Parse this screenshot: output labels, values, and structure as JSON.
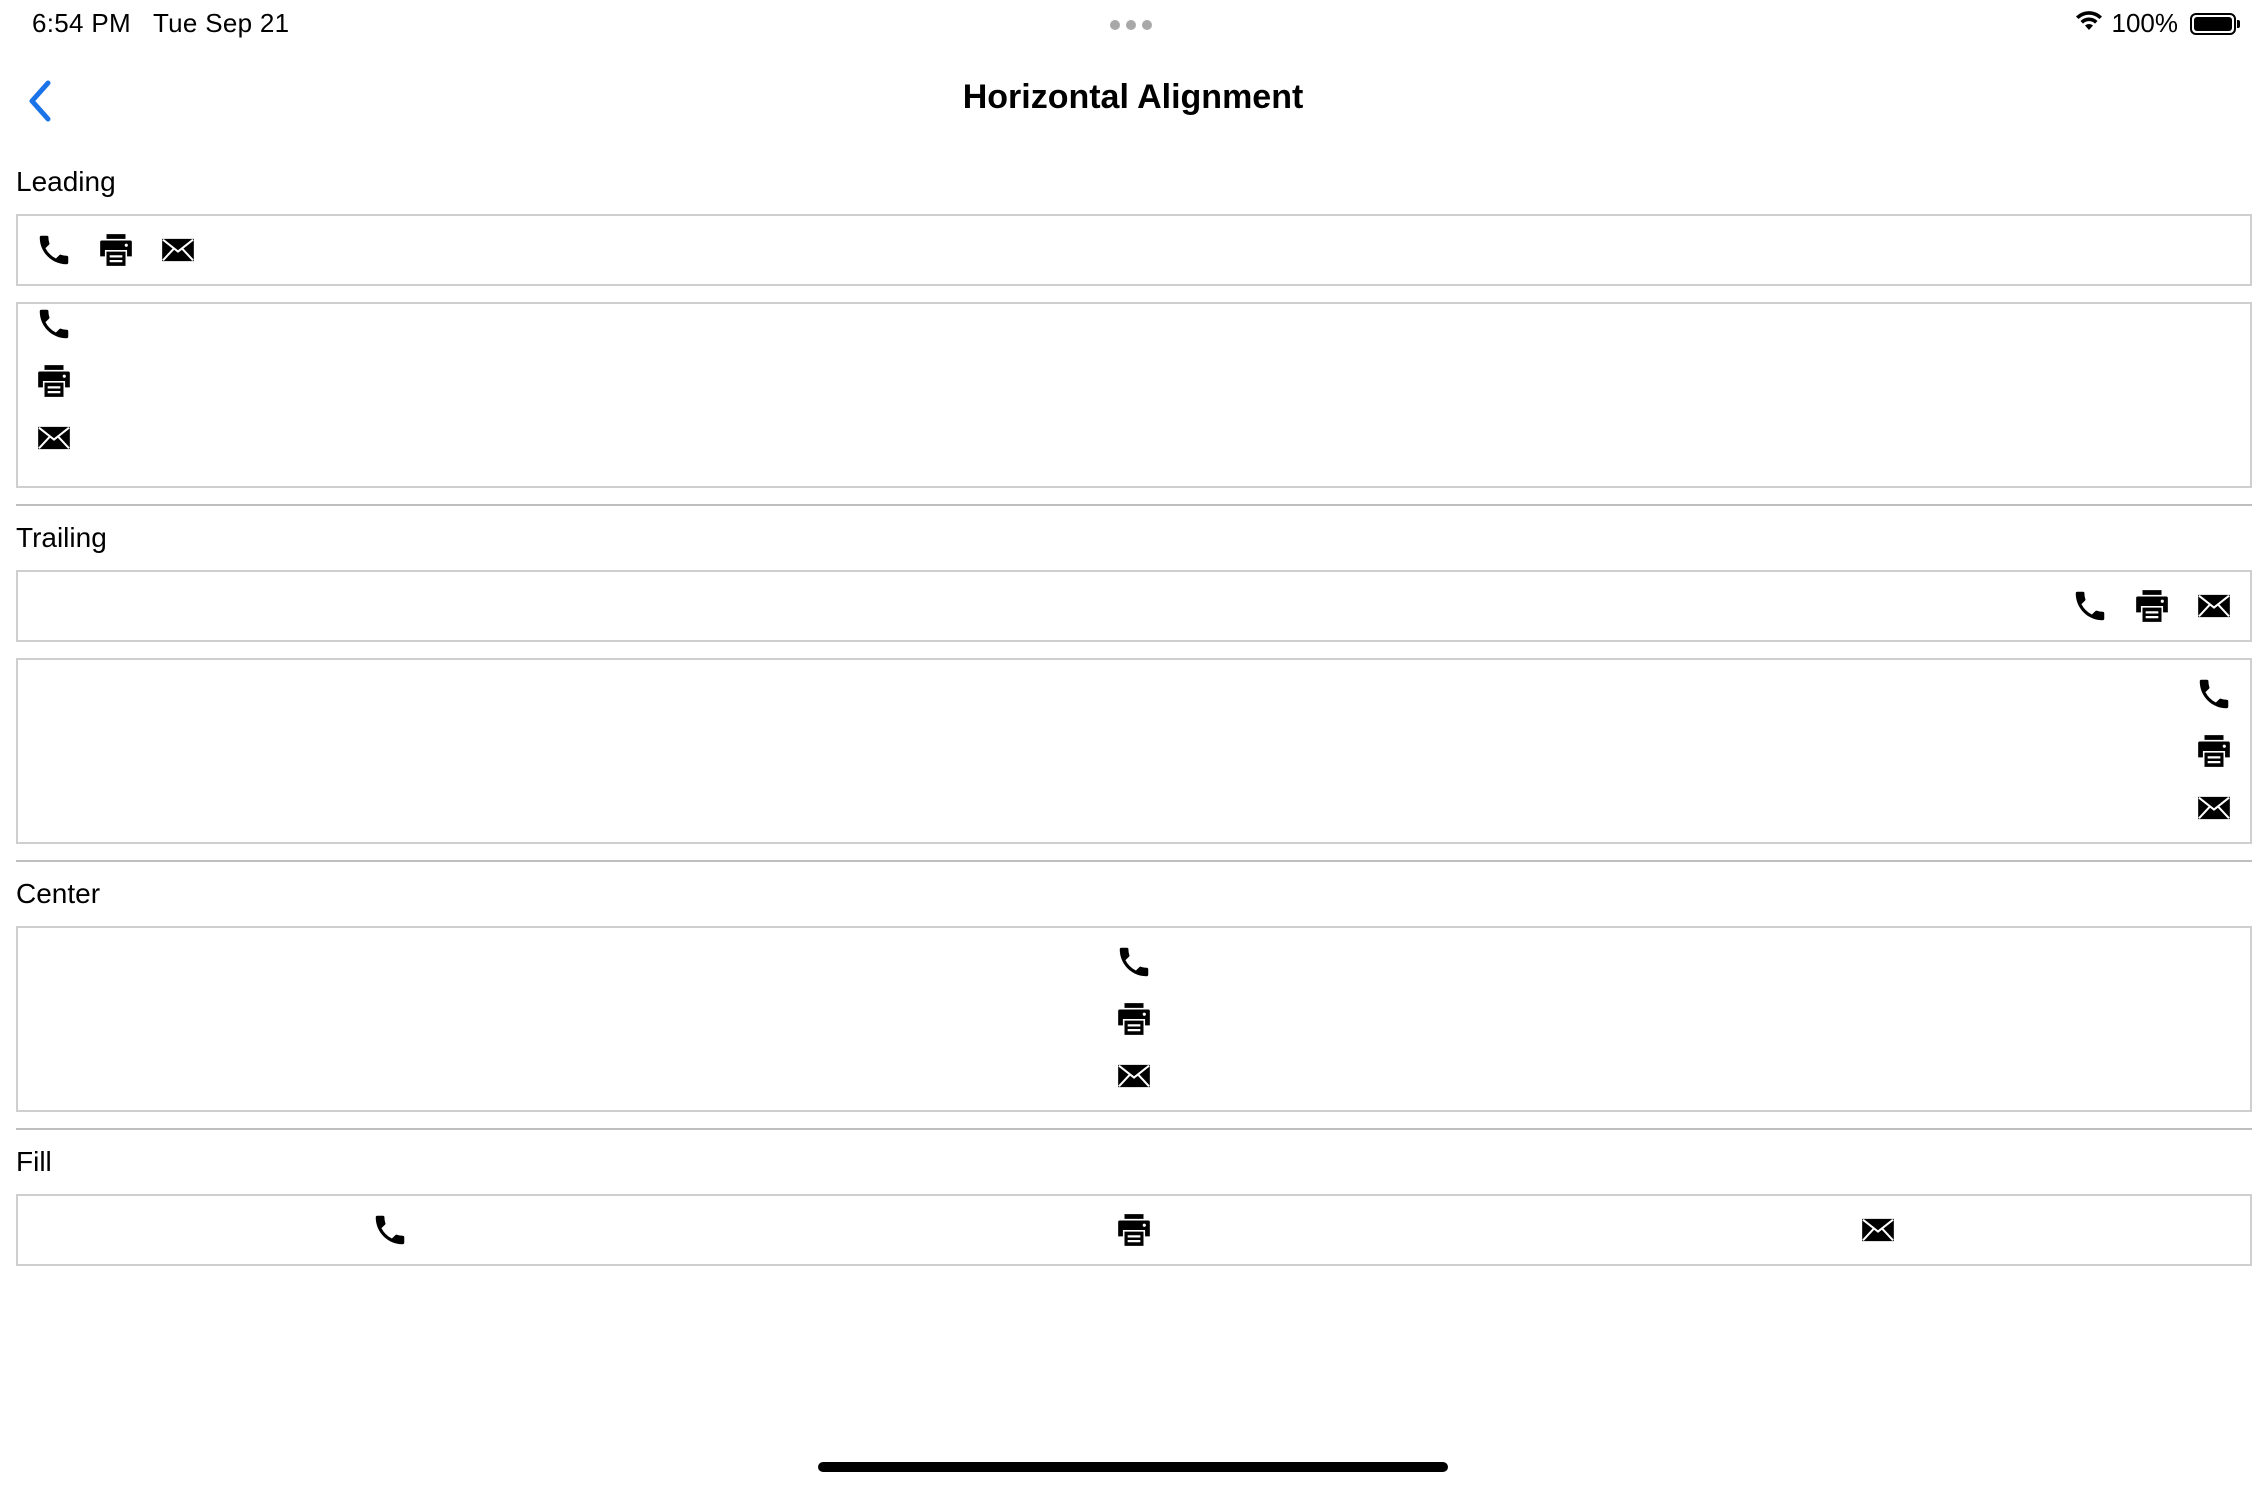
{
  "status_bar": {
    "time": "6:54 PM",
    "date": "Tue Sep 21",
    "battery_label": "100%",
    "battery_level": 1.0
  },
  "nav": {
    "title": "Horizontal Alignment",
    "accent_color": "#1a73e8"
  },
  "sections": {
    "leading": {
      "label": "Leading"
    },
    "trailing": {
      "label": "Trailing"
    },
    "center": {
      "label": "Center"
    },
    "fill": {
      "label": "Fill"
    }
  },
  "icons": [
    "phone-icon",
    "printer-icon",
    "envelope-icon"
  ]
}
